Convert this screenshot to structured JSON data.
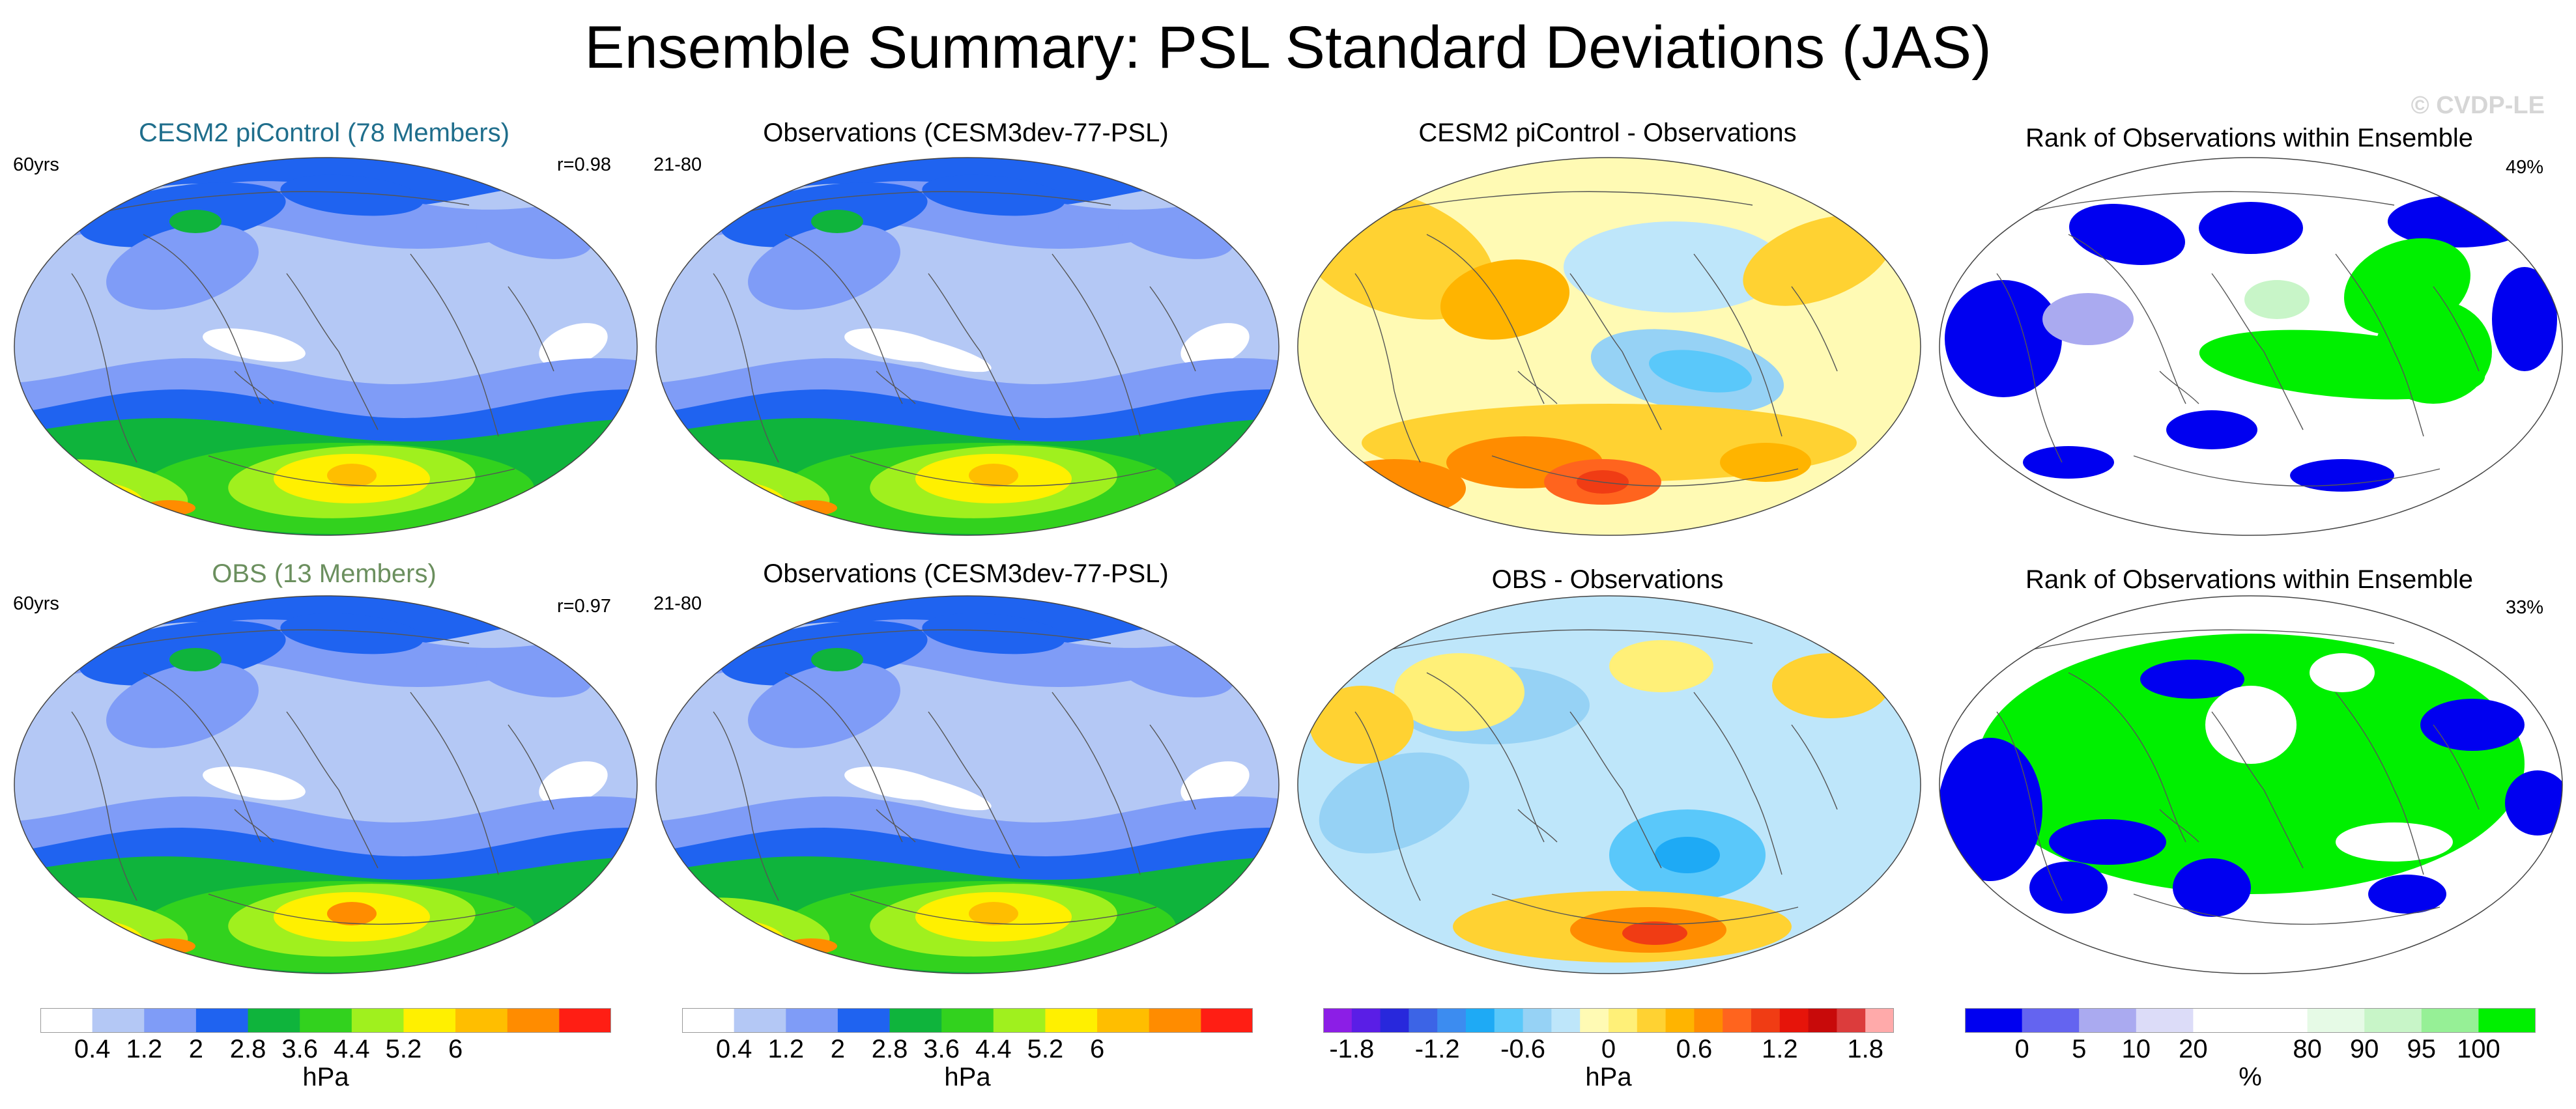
{
  "title": "Ensemble Summary: PSL Standard Deviations (JAS)",
  "watermark": "© CVDP-LE",
  "panels": [
    {
      "title": "CESM2 piControl (78 Members)",
      "title_color": "#1f6e8c",
      "left": "60yrs",
      "right": "r=0.98",
      "kind": "std"
    },
    {
      "title": "Observations (CESM3dev-77-PSL)",
      "title_color": "#000000",
      "left": "21-80",
      "right": "",
      "kind": "std"
    },
    {
      "title": "CESM2 piControl - Observations",
      "title_color": "#000000",
      "left": "",
      "right": "",
      "kind": "diff"
    },
    {
      "title": "Rank of Observations within Ensemble",
      "title_color": "#000000",
      "left": "",
      "right": "49%",
      "kind": "rank"
    },
    {
      "title": "OBS (13 Members)",
      "title_color": "#6b8f5e",
      "left": "60yrs",
      "right": "r=0.97",
      "kind": "std"
    },
    {
      "title": "Observations (CESM3dev-77-PSL)",
      "title_color": "#000000",
      "left": "21-80",
      "right": "",
      "kind": "std"
    },
    {
      "title": "OBS - Observations",
      "title_color": "#000000",
      "left": "",
      "right": "",
      "kind": "diff"
    },
    {
      "title": "Rank of Observations within Ensemble",
      "title_color": "#000000",
      "left": "",
      "right": "33%",
      "kind": "rank"
    }
  ],
  "colorbars": [
    {
      "unit": "hPa",
      "colors": [
        "#ffffff",
        "#b4c8f5",
        "#7f9cf7",
        "#1f63f0",
        "#0fb43c",
        "#32d21e",
        "#a0f01e",
        "#fff000",
        "#ffbe00",
        "#ff8c00",
        "#ff1e14"
      ],
      "ticks": [
        "0.4",
        "1.2",
        "2",
        "2.8",
        "3.6",
        "4.4",
        "5.2",
        "6"
      ]
    },
    {
      "unit": "hPa",
      "colors": [
        "#ffffff",
        "#b4c8f5",
        "#7f9cf7",
        "#1f63f0",
        "#0fb43c",
        "#32d21e",
        "#a0f01e",
        "#fff000",
        "#ffbe00",
        "#ff8c00",
        "#ff1e14"
      ],
      "ticks": [
        "0.4",
        "1.2",
        "2",
        "2.8",
        "3.6",
        "4.4",
        "5.2",
        "6"
      ]
    },
    {
      "unit": "hPa",
      "colors": [
        "#8c1ee6",
        "#5a1ee6",
        "#2828dc",
        "#3c64e6",
        "#3c8cf0",
        "#1eaaf5",
        "#5ac8fa",
        "#96d2f5",
        "#bee6fa",
        "#fffab4",
        "#fff078",
        "#ffd232",
        "#ffb400",
        "#ff8c00",
        "#ff641e",
        "#f03c14",
        "#e6140a",
        "#c80a0a",
        "#dc3c3c",
        "#ffaaaa"
      ],
      "ticks": [
        "-1.8",
        "-1.2",
        "-0.6",
        "0",
        "0.6",
        "1.2",
        "1.8"
      ]
    },
    {
      "unit": "%",
      "colors": [
        "#0000f0",
        "#6464f0",
        "#aaaaf0",
        "#dcdcf8",
        "#ffffff",
        "#ffffff",
        "#e6fae6",
        "#c8f5c8",
        "#96f096",
        "#00f000"
      ],
      "ticks": [
        "0",
        "5",
        "10",
        "20",
        "80",
        "90",
        "95",
        "100"
      ]
    }
  ]
}
